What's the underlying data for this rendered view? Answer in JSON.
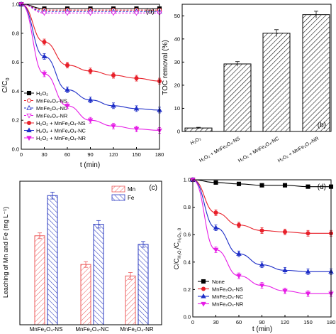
{
  "colors": {
    "black": "#000000",
    "red": "#e8202a",
    "blue": "#1f2fc8",
    "magenta": "#e61ee6",
    "mn_hatch": "#ec5a5a",
    "fe_hatch": "#2838c0"
  },
  "chart_data": [
    {
      "panel": "(a)",
      "type": "line",
      "xlabel": "t (min)",
      "ylabel": "C/C",
      "ylabel_sub": "0",
      "xlim": [
        0,
        180
      ],
      "ylim": [
        0,
        1.0
      ],
      "xticks": [
        "0",
        "30",
        "60",
        "90",
        "120",
        "150",
        "180"
      ],
      "yticks": [
        "0.0",
        "0.2",
        "0.4",
        "0.6",
        "0.8",
        "1.0"
      ],
      "x": [
        0,
        30,
        60,
        90,
        120,
        150,
        180
      ],
      "legend": "center-left",
      "series": [
        {
          "name": "H₂O₂",
          "color": "#000000",
          "marker": "square",
          "line": "solid",
          "values": [
            1.0,
            0.97,
            0.97,
            0.97,
            0.97,
            0.97,
            0.97
          ]
        },
        {
          "name": "MnFe₂O₄-NS",
          "color": "#e8202a",
          "marker": "circle-open",
          "line": "dashed",
          "values": [
            1.0,
            0.96,
            0.96,
            0.96,
            0.96,
            0.96,
            0.96
          ]
        },
        {
          "name": "MnFe₂O₄-NC",
          "color": "#1f2fc8",
          "marker": "triangle-open",
          "line": "dashed",
          "values": [
            1.0,
            0.95,
            0.95,
            0.95,
            0.95,
            0.95,
            0.95
          ]
        },
        {
          "name": "MnFe₂O₄-NR",
          "color": "#e61ee6",
          "marker": "triangle-down-open",
          "line": "dashed",
          "values": [
            1.0,
            0.94,
            0.94,
            0.94,
            0.94,
            0.94,
            0.94
          ]
        },
        {
          "name": "H₂O₂ + MnFe₂O₄-NS",
          "color": "#e8202a",
          "marker": "circle",
          "line": "solid",
          "values": [
            1.0,
            0.74,
            0.58,
            0.54,
            0.51,
            0.49,
            0.47
          ]
        },
        {
          "name": "H₂O₂ + MnFe₂O₄-NC",
          "color": "#1f2fc8",
          "marker": "triangle",
          "line": "solid",
          "values": [
            1.0,
            0.64,
            0.41,
            0.34,
            0.3,
            0.28,
            0.27
          ]
        },
        {
          "name": "H₂O₂ + MnFe₂O₄-NR",
          "color": "#e61ee6",
          "marker": "triangle-down",
          "line": "solid",
          "values": [
            1.0,
            0.52,
            0.3,
            0.2,
            0.16,
            0.14,
            0.13
          ]
        }
      ]
    },
    {
      "panel": "(b)",
      "type": "bar",
      "xlabel": "",
      "ylabel": "TOC removal (%)",
      "ylim": [
        0,
        55
      ],
      "yticks": [
        "0",
        "10",
        "20",
        "30",
        "40",
        "50"
      ],
      "categories": [
        "H₂O₂",
        "H₂O₂ + MnFe₂O₄-NS",
        "H₂O₂ + MnFe₂O₄-NC",
        "H₂O₂ + MnFe₂O₄-NR"
      ],
      "values": [
        1.5,
        29.2,
        42.5,
        50.5
      ],
      "errors": [
        0.3,
        1.0,
        1.5,
        1.5
      ]
    },
    {
      "panel": "(c)",
      "type": "bar",
      "xlabel": "",
      "ylabel": "Leaching of Mn and Fe (mg L⁻¹)",
      "ylim": [
        0,
        0.05
      ],
      "categories": [
        "MnFe₂O₄-NS",
        "MnFe₂O₄-NC",
        "MnFe₂O₄-NR"
      ],
      "legend": "top-right",
      "series": [
        {
          "name": "Mn",
          "color": "#ec5a5a",
          "values": [
            0.031,
            0.021,
            0.017
          ],
          "errors": [
            0.001,
            0.001,
            0.0012
          ]
        },
        {
          "name": "Fe",
          "color": "#2838c0",
          "values": [
            0.045,
            0.035,
            0.028
          ],
          "errors": [
            0.0012,
            0.0013,
            0.001
          ]
        }
      ]
    },
    {
      "panel": "(d)",
      "type": "line",
      "xlabel": "t (min)",
      "ylabel": "C/C",
      "xlim": [
        0,
        180
      ],
      "ylim": [
        0,
        1.0
      ],
      "xticks": [
        "0",
        "30",
        "60",
        "90",
        "120",
        "150",
        "180"
      ],
      "yticks": [
        "0.0",
        "0.2",
        "0.4",
        "0.6",
        "0.8",
        "1.0"
      ],
      "x": [
        0,
        30,
        60,
        90,
        120,
        150,
        180
      ],
      "legend": "bottom-left",
      "series": [
        {
          "name": "None",
          "color": "#000000",
          "marker": "square",
          "values": [
            1.0,
            0.98,
            0.97,
            0.96,
            0.96,
            0.95,
            0.95
          ]
        },
        {
          "name": "MnFe₂O₄-NS",
          "color": "#e8202a",
          "marker": "circle",
          "values": [
            1.0,
            0.76,
            0.67,
            0.63,
            0.62,
            0.61,
            0.61
          ]
        },
        {
          "name": "MnFe₂O₄-NC",
          "color": "#1f2fc8",
          "marker": "triangle",
          "values": [
            1.0,
            0.65,
            0.46,
            0.38,
            0.34,
            0.33,
            0.33
          ]
        },
        {
          "name": "MnFe₂O₄-NR",
          "color": "#e61ee6",
          "marker": "triangle-down",
          "values": [
            1.0,
            0.49,
            0.3,
            0.23,
            0.19,
            0.17,
            0.17
          ]
        }
      ]
    }
  ]
}
